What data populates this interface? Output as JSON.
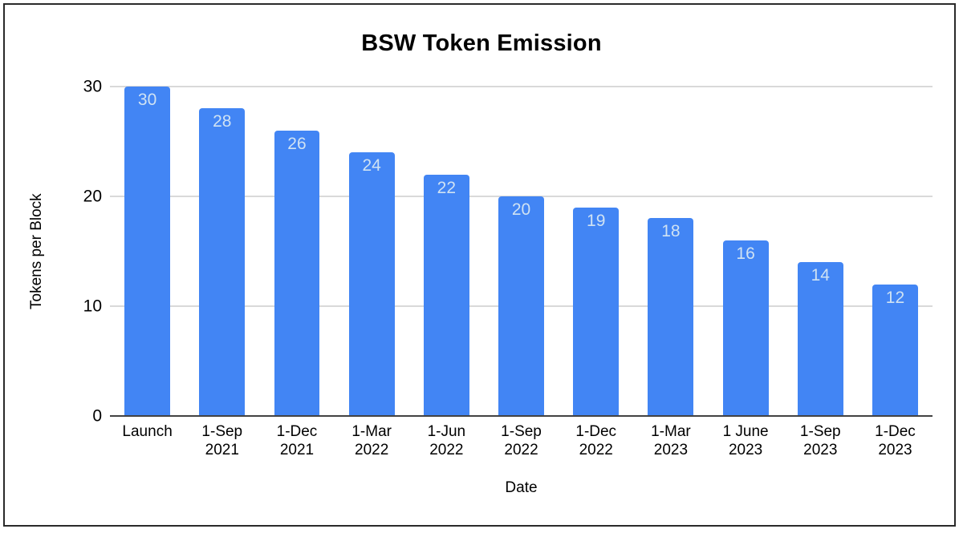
{
  "page": {
    "background_color": "#ffffff",
    "frame_border_color": "#2a2a2a"
  },
  "chart_data": {
    "type": "bar",
    "title": "BSW Token Emission",
    "xlabel": "Date",
    "ylabel": "Tokens per Block",
    "categories": [
      [
        "Launch"
      ],
      [
        "1-Sep",
        "2021"
      ],
      [
        "1-Dec",
        "2021"
      ],
      [
        "1-Mar",
        "2022"
      ],
      [
        "1-Jun",
        "2022"
      ],
      [
        "1-Sep",
        "2022"
      ],
      [
        "1-Dec",
        "2022"
      ],
      [
        "1-Mar",
        "2023"
      ],
      [
        "1 June",
        "2023"
      ],
      [
        "1-Sep",
        "2023"
      ],
      [
        "1-Dec",
        "2023"
      ]
    ],
    "values": [
      30,
      28,
      26,
      24,
      22,
      20,
      19,
      18,
      16,
      14,
      12
    ],
    "ylim": [
      0,
      30
    ],
    "yticks": [
      0,
      10,
      20,
      30
    ],
    "grid": true,
    "legend": "none",
    "bar_color": "#4285f4",
    "bar_label_color": "#cfe2f3",
    "gridline_color": "#d9d9d9",
    "axis_line_color": "#424242",
    "text_color": "#000000"
  }
}
